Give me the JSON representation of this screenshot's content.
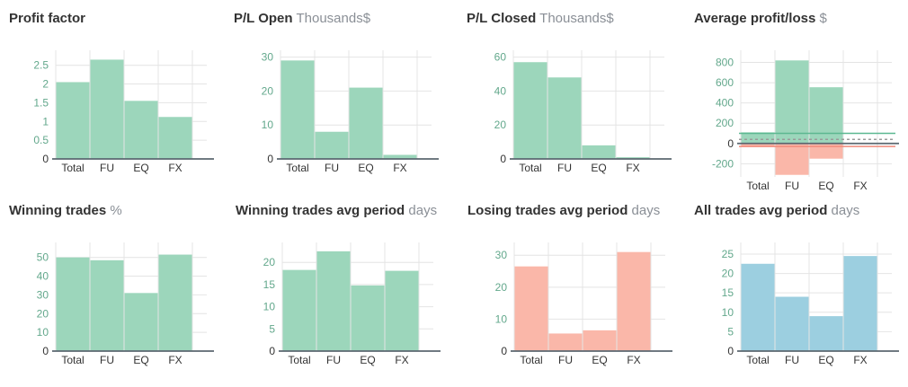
{
  "colors": {
    "green": "#9cd6bb",
    "red": "#fab7a9",
    "blue": "#9ccfe0",
    "axis": "#5b6770",
    "grid": "#e4e4e4",
    "ticks": "#63a88c"
  },
  "chart_data": [
    {
      "id": "profit-factor",
      "type": "bar",
      "title": "Profit factor",
      "unit": "",
      "categories": [
        "Total",
        "FU",
        "EQ",
        "FX"
      ],
      "values": [
        2.05,
        2.65,
        1.55,
        1.12
      ],
      "yticks": [
        "0",
        "0.5",
        "1",
        "1.5",
        "2",
        "2.5"
      ],
      "ylim": [
        0,
        2.9
      ],
      "color": "green"
    },
    {
      "id": "pl-open",
      "type": "bar",
      "title": "P/L Open",
      "unit": "Thousands$",
      "categories": [
        "Total",
        "FU",
        "EQ",
        "FX"
      ],
      "values": [
        29,
        8,
        21,
        1.2
      ],
      "yticks": [
        "0",
        "10",
        "20",
        "30"
      ],
      "ylim": [
        0,
        32
      ],
      "color": "green"
    },
    {
      "id": "pl-closed",
      "type": "bar",
      "title": "P/L Closed",
      "unit": "Thousands$",
      "categories": [
        "Total",
        "FU",
        "EQ",
        "FX"
      ],
      "values": [
        57,
        48,
        8,
        1
      ],
      "yticks": [
        "0",
        "20",
        "40",
        "60"
      ],
      "ylim": [
        0,
        64
      ],
      "color": "green"
    },
    {
      "id": "avg-profit-loss",
      "type": "bar",
      "title": "Average profit/loss",
      "unit": "$",
      "categories": [
        "Total",
        "FU",
        "EQ",
        "FX"
      ],
      "series": [
        {
          "values": [
            110,
            820,
            555,
            0
          ],
          "color": "green"
        },
        {
          "values": [
            -30,
            -310,
            -150,
            0
          ],
          "color": "red"
        }
      ],
      "yticks": [
        "-200",
        "0",
        "200",
        "400",
        "600",
        "800"
      ],
      "ylim": [
        -330,
        920
      ],
      "reference_lines": [
        {
          "value": 100,
          "color": "#5cb891"
        },
        {
          "value": 40,
          "color": "#999999",
          "dashed": true
        },
        {
          "value": 0,
          "color": "#777777"
        },
        {
          "value": -30,
          "color": "#f08a7a"
        }
      ]
    },
    {
      "id": "winning-trades",
      "type": "bar",
      "title": "Winning trades",
      "unit": "%",
      "categories": [
        "Total",
        "FU",
        "EQ",
        "FX"
      ],
      "values": [
        50,
        48.5,
        31,
        51.5
      ],
      "yticks": [
        "0",
        "10",
        "20",
        "30",
        "40",
        "50"
      ],
      "ylim": [
        0,
        58
      ],
      "color": "green"
    },
    {
      "id": "winning-trades-period",
      "type": "bar",
      "title": "Winning trades avg period",
      "unit": "days",
      "categories": [
        "Total",
        "FU",
        "EQ",
        "FX"
      ],
      "values": [
        18.3,
        22.5,
        14.8,
        18.1
      ],
      "yticks": [
        "0",
        "5",
        "10",
        "15",
        "20"
      ],
      "ylim": [
        0,
        24.5
      ],
      "color": "green"
    },
    {
      "id": "losing-trades-period",
      "type": "bar",
      "title": "Losing trades avg period",
      "unit": "days",
      "categories": [
        "Total",
        "FU",
        "EQ",
        "FX"
      ],
      "values": [
        26.5,
        5.5,
        6.5,
        31
      ],
      "yticks": [
        "0",
        "10",
        "20",
        "30"
      ],
      "ylim": [
        0,
        34
      ],
      "color": "red"
    },
    {
      "id": "all-trades-period",
      "type": "bar",
      "title": "All trades avg period",
      "unit": "days",
      "categories": [
        "Total",
        "FU",
        "EQ",
        "FX"
      ],
      "values": [
        22.5,
        14,
        9,
        24.5
      ],
      "yticks": [
        "0",
        "5",
        "10",
        "15",
        "20",
        "25"
      ],
      "ylim": [
        0,
        28
      ],
      "color": "blue"
    }
  ]
}
